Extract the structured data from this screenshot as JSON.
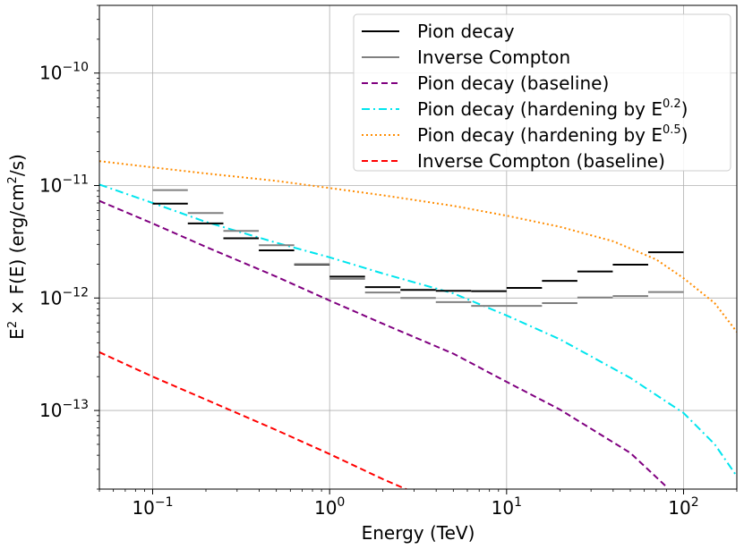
{
  "chart_data": {
    "type": "line",
    "xscale": "log",
    "yscale": "log",
    "xlim": [
      0.05,
      200
    ],
    "ylim": [
      2e-14,
      4e-10
    ],
    "grid": true,
    "xlabel": "Energy (TeV)",
    "ylabel": {
      "pre": "E",
      "sup1": "2",
      "mid": " × F(E) (erg/cm",
      "sup2": "2",
      "post": "/s)"
    },
    "x_ticks": [
      {
        "value": 0.1,
        "base": "10",
        "exp": "−1"
      },
      {
        "value": 1,
        "base": "10",
        "exp": "0"
      },
      {
        "value": 10,
        "base": "10",
        "exp": "1"
      },
      {
        "value": 100,
        "base": "10",
        "exp": "2"
      }
    ],
    "y_ticks": [
      {
        "value": 1e-13,
        "base": "10",
        "exp": "−13"
      },
      {
        "value": 1e-12,
        "base": "10",
        "exp": "−12"
      },
      {
        "value": 1e-11,
        "base": "10",
        "exp": "−11"
      },
      {
        "value": 1e-10,
        "base": "10",
        "exp": "−10"
      }
    ],
    "legend_position": "top-right",
    "legend": [
      {
        "key": "pion_data",
        "label": "Pion decay",
        "sup": "",
        "color": "#000000",
        "style": "solid"
      },
      {
        "key": "ic_data",
        "label": "Inverse Compton",
        "sup": "",
        "color": "#808080",
        "style": "solid"
      },
      {
        "key": "pion_base",
        "label": "Pion decay (baseline)",
        "sup": "",
        "color": "#800080",
        "style": "dashed"
      },
      {
        "key": "pion_h02",
        "label": "Pion decay (hardening by E",
        "sup": "0.2",
        "close": ")",
        "color": "#00e5ee",
        "style": "dashdot"
      },
      {
        "key": "pion_h05",
        "label": "Pion decay (hardening by E",
        "sup": "0.5",
        "close": ")",
        "color": "#ff8c00",
        "style": "dotted"
      },
      {
        "key": "ic_base",
        "label": "Inverse Compton (baseline)",
        "sup": "",
        "color": "#ff0000",
        "style": "dashed"
      }
    ],
    "step_series": [
      {
        "key": "pion_data",
        "name": "Pion decay",
        "color": "#000000",
        "bins": [
          {
            "x0": 0.1,
            "x1": 0.158,
            "y": 6.9e-12
          },
          {
            "x0": 0.158,
            "x1": 0.251,
            "y": 4.6e-12
          },
          {
            "x0": 0.251,
            "x1": 0.398,
            "y": 3.4e-12
          },
          {
            "x0": 0.398,
            "x1": 0.631,
            "y": 2.65e-12
          },
          {
            "x0": 0.631,
            "x1": 1.0,
            "y": 1.98e-12
          },
          {
            "x0": 1.0,
            "x1": 1.585,
            "y": 1.55e-12
          },
          {
            "x0": 1.585,
            "x1": 2.512,
            "y": 1.25e-12
          },
          {
            "x0": 2.512,
            "x1": 3.981,
            "y": 1.18e-12
          },
          {
            "x0": 3.981,
            "x1": 6.31,
            "y": 1.16e-12
          },
          {
            "x0": 6.31,
            "x1": 10.0,
            "y": 1.15e-12
          },
          {
            "x0": 10.0,
            "x1": 15.85,
            "y": 1.23e-12
          },
          {
            "x0": 15.85,
            "x1": 25.12,
            "y": 1.42e-12
          },
          {
            "x0": 25.12,
            "x1": 39.81,
            "y": 1.72e-12
          },
          {
            "x0": 39.81,
            "x1": 63.1,
            "y": 1.98e-12
          },
          {
            "x0": 63.1,
            "x1": 100.0,
            "y": 2.55e-12
          }
        ]
      },
      {
        "key": "ic_data",
        "name": "Inverse Compton",
        "color": "#808080",
        "bins": [
          {
            "x0": 0.1,
            "x1": 0.158,
            "y": 9.1e-12
          },
          {
            "x0": 0.158,
            "x1": 0.251,
            "y": 5.7e-12
          },
          {
            "x0": 0.251,
            "x1": 0.398,
            "y": 3.95e-12
          },
          {
            "x0": 0.398,
            "x1": 0.631,
            "y": 2.95e-12
          },
          {
            "x0": 0.631,
            "x1": 1.0,
            "y": 2e-12
          },
          {
            "x0": 1.0,
            "x1": 1.585,
            "y": 1.48e-12
          },
          {
            "x0": 1.585,
            "x1": 2.512,
            "y": 1.12e-12
          },
          {
            "x0": 2.512,
            "x1": 3.981,
            "y": 1e-12
          },
          {
            "x0": 3.981,
            "x1": 6.31,
            "y": 9.2e-13
          },
          {
            "x0": 6.31,
            "x1": 10.0,
            "y": 8.5e-13
          },
          {
            "x0": 10.0,
            "x1": 15.85,
            "y": 8.5e-13
          },
          {
            "x0": 15.85,
            "x1": 25.12,
            "y": 9e-13
          },
          {
            "x0": 25.12,
            "x1": 39.81,
            "y": 1.01e-12
          },
          {
            "x0": 39.81,
            "x1": 63.1,
            "y": 1.04e-12
          },
          {
            "x0": 63.1,
            "x1": 100.0,
            "y": 1.13e-12
          }
        ]
      }
    ],
    "curve_series": [
      {
        "key": "pion_base",
        "name": "Pion decay (baseline)",
        "color": "#800080",
        "style": "dashed",
        "points": [
          [
            0.05,
            7.3e-12
          ],
          [
            0.1,
            4.6e-12
          ],
          [
            0.2,
            2.85e-12
          ],
          [
            0.5,
            1.55e-12
          ],
          [
            1,
            9.5e-13
          ],
          [
            2,
            5.9e-13
          ],
          [
            5,
            3.2e-13
          ],
          [
            10,
            1.8e-13
          ],
          [
            20,
            1.02e-13
          ],
          [
            50,
            4.2e-14
          ],
          [
            80,
            2.1e-14
          ]
        ]
      },
      {
        "key": "pion_h02",
        "name": "Pion decay (hardening by E^0.2)",
        "color": "#00e5ee",
        "style": "dashdot",
        "points": [
          [
            0.05,
            1.02e-11
          ],
          [
            0.1,
            7e-12
          ],
          [
            0.2,
            4.75e-12
          ],
          [
            0.5,
            3.1e-12
          ],
          [
            1,
            2.3e-12
          ],
          [
            2,
            1.65e-12
          ],
          [
            5,
            1.1e-12
          ],
          [
            10,
            7e-13
          ],
          [
            20,
            4.3e-13
          ],
          [
            50,
            1.95e-13
          ],
          [
            100,
            9.5e-14
          ],
          [
            150,
            5e-14
          ],
          [
            200,
            2.6e-14
          ]
        ]
      },
      {
        "key": "pion_h05",
        "name": "Pion decay (hardening by E^0.5)",
        "color": "#ff8c00",
        "style": "dotted",
        "points": [
          [
            0.05,
            1.65e-11
          ],
          [
            0.1,
            1.45e-11
          ],
          [
            0.2,
            1.28e-11
          ],
          [
            0.5,
            1.1e-11
          ],
          [
            1,
            9.5e-12
          ],
          [
            2,
            8.2e-12
          ],
          [
            5,
            6.6e-12
          ],
          [
            10,
            5.4e-12
          ],
          [
            20,
            4.3e-12
          ],
          [
            40,
            3.2e-12
          ],
          [
            70,
            2.2e-12
          ],
          [
            100,
            1.5e-12
          ],
          [
            150,
            9e-13
          ],
          [
            200,
            5e-13
          ]
        ]
      },
      {
        "key": "ic_base",
        "name": "Inverse Compton (baseline)",
        "color": "#ff0000",
        "style": "dashed",
        "points": [
          [
            0.05,
            3.3e-13
          ],
          [
            0.1,
            2e-13
          ],
          [
            0.2,
            1.25e-13
          ],
          [
            0.5,
            6.7e-14
          ],
          [
            1,
            4.1e-14
          ],
          [
            2,
            2.45e-14
          ],
          [
            2.8,
            1.95e-14
          ]
        ]
      }
    ]
  }
}
